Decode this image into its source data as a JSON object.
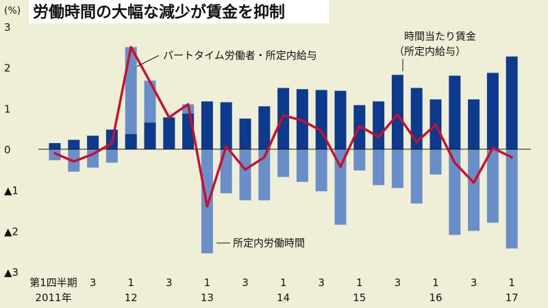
{
  "title": "労働時間の大幅な減少が賃金を抑制",
  "unit": "(%)",
  "chart_data": {
    "type": "bar",
    "y_ticks": [
      "3",
      "2",
      "1",
      "0",
      "▲1",
      "▲2",
      "▲3"
    ],
    "ylim": [
      -3,
      3
    ],
    "grid": false,
    "x_labels": [
      {
        "index": 0,
        "top": "第1四半期",
        "bottom": "2011年"
      },
      {
        "index": 2,
        "top": "3",
        "bottom": ""
      },
      {
        "index": 4,
        "top": "1",
        "bottom": "12"
      },
      {
        "index": 6,
        "top": "3",
        "bottom": ""
      },
      {
        "index": 8,
        "top": "1",
        "bottom": "13"
      },
      {
        "index": 10,
        "top": "3",
        "bottom": ""
      },
      {
        "index": 12,
        "top": "1",
        "bottom": "14"
      },
      {
        "index": 14,
        "top": "3",
        "bottom": ""
      },
      {
        "index": 16,
        "top": "1",
        "bottom": "15"
      },
      {
        "index": 18,
        "top": "3",
        "bottom": ""
      },
      {
        "index": 20,
        "top": "1",
        "bottom": "16"
      },
      {
        "index": 22,
        "top": "3",
        "bottom": ""
      },
      {
        "index": 24,
        "top": "1",
        "bottom": "17"
      }
    ],
    "series": [
      {
        "name": "時間当たり賃金（所定内給与）",
        "type": "bar",
        "color": "#0d3a8c",
        "values": [
          0.15,
          0.23,
          0.33,
          0.48,
          0.37,
          0.65,
          0.78,
          0.87,
          1.17,
          1.15,
          0.75,
          1.05,
          1.5,
          1.47,
          1.45,
          1.43,
          1.08,
          1.17,
          1.82,
          1.5,
          1.22,
          1.8,
          1.22,
          1.87,
          2.27
        ]
      },
      {
        "name": "所定内労働時間",
        "type": "bar",
        "color": "#6a8ec8",
        "values": [
          -0.27,
          -0.55,
          -0.45,
          -0.33,
          2.5,
          1.68,
          0.78,
          1.1,
          -2.55,
          -1.08,
          -1.25,
          -1.25,
          -0.68,
          -0.8,
          -1.03,
          -1.85,
          -0.52,
          -0.88,
          -0.95,
          -1.33,
          -0.62,
          -2.1,
          -2.0,
          -1.8,
          -2.43
        ]
      },
      {
        "name": "パートタイム労働者・所定内給与",
        "type": "line",
        "color": "#c8102e",
        "values": [
          -0.1,
          -0.3,
          -0.12,
          0.15,
          2.5,
          1.65,
          0.78,
          1.1,
          -1.4,
          0.07,
          -0.5,
          -0.2,
          0.83,
          0.7,
          0.45,
          -0.43,
          0.57,
          0.3,
          0.85,
          0.18,
          0.6,
          -0.33,
          -0.82,
          0.03,
          -0.2
        ]
      }
    ],
    "annotations": {
      "part_time": "パートタイム労働者・所定内給与",
      "hourly_line1": "時間当たり賃金",
      "hourly_line2": "（所定内給与）",
      "hours": "所定内労働時間"
    }
  }
}
